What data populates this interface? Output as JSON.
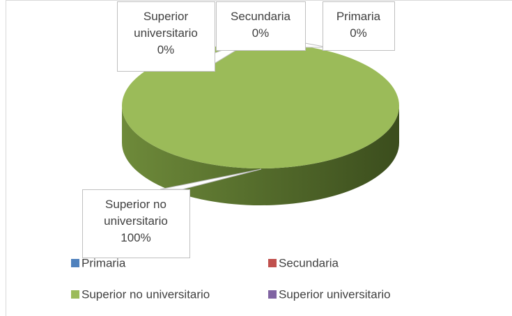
{
  "chart_data": {
    "type": "pie3d",
    "categories": [
      "Primaria",
      "Secundaria",
      "Superior no universitario",
      "Superior universitario"
    ],
    "values": [
      0,
      0,
      100,
      0
    ],
    "value_labels": [
      "0%",
      "0%",
      "100%",
      "0%"
    ],
    "colors": [
      "#4f81bd",
      "#c0504d",
      "#9bbb59",
      "#8064a2"
    ],
    "legend": "bottom"
  }
}
